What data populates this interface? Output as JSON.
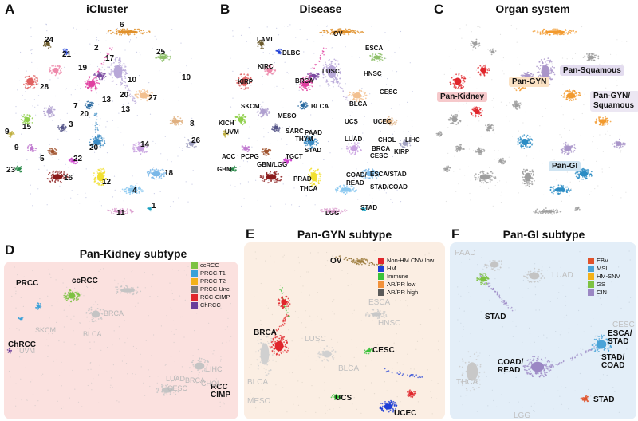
{
  "panels": {
    "A": {
      "letter": "A",
      "title": "iCluster",
      "labels": [
        "1",
        "2",
        "3",
        "4",
        "5",
        "6",
        "7",
        "8",
        "9",
        "9",
        "10",
        "10",
        "11",
        "12",
        "13",
        "13",
        "14",
        "15",
        "16",
        "17",
        "18",
        "19",
        "20",
        "20",
        "20",
        "21",
        "22",
        "23",
        "24",
        "25",
        "26",
        "27",
        "28"
      ]
    },
    "B": {
      "letter": "B",
      "title": "Disease",
      "labels": [
        "OV",
        "LAML",
        "DLBC",
        "ESCA",
        "KIRC",
        "LUSC",
        "HNSC",
        "BRCA",
        "KIRP",
        "BLCA",
        "CESC",
        "SKCM",
        "BLCA",
        "MESO",
        "UCS",
        "UCEC",
        "KICH",
        "UVM",
        "SARC",
        "THYM",
        "PAAD",
        "LUAD",
        "CHOL",
        "LIHC",
        "STAD",
        "BRCA",
        "CESC",
        "KIRP",
        "ACC",
        "PCPG",
        "TGCT",
        "GBM/LGG",
        "GBM",
        "PRAD",
        "THCA",
        "COAD/ READ",
        "ESCA/STAD",
        "STAD/COAD",
        "LGG",
        "STAD"
      ]
    },
    "C": {
      "letter": "C",
      "title": "Organ system",
      "tags": [
        "Pan-Kidney",
        "Pan-GYN",
        "Pan-Squamous",
        "Pan-GYN/ Squamous",
        "Pan-GI"
      ],
      "colors": {
        "kidney": "#e0252b",
        "gyn": "#f29a2e",
        "squamous": "#a995c9",
        "gi": "#2b8cc4",
        "other": "#9e9e9e"
      }
    },
    "D": {
      "letter": "D",
      "title": "Pan-Kidney subtype",
      "legend": [
        {
          "label": "ccRCC",
          "color": "#7dc242"
        },
        {
          "label": "PRCC T1",
          "color": "#3aa0d8"
        },
        {
          "label": "PRCC T2",
          "color": "#f2b11a"
        },
        {
          "label": "PRCC Unc.",
          "color": "#7a7a7a"
        },
        {
          "label": "RCC-CIMP",
          "color": "#e0252b"
        },
        {
          "label": "ChRCC",
          "color": "#6a3d9a"
        }
      ],
      "labels": [
        "ccRCC",
        "PRCC",
        "ChRCC",
        "RCC CIMP"
      ],
      "gray_labels": [
        "BRCA",
        "SKCM",
        "BLCA",
        "UVM",
        "LUAD",
        "LIHC",
        "CHOL",
        "BRCA",
        "CESC"
      ]
    },
    "E": {
      "letter": "E",
      "title": "Pan-GYN subtype",
      "legend": [
        {
          "label": "Non-HM CNV low",
          "color": "#e0252b"
        },
        {
          "label": "HM",
          "color": "#1f3fd6"
        },
        {
          "label": "Immune",
          "color": "#39c239"
        },
        {
          "label": "AR/PR low",
          "color": "#f2913a"
        },
        {
          "label": "AR/PR high",
          "color": "#5a5a5a"
        }
      ],
      "labels": [
        "OV",
        "BRCA",
        "CESC",
        "UCS",
        "UCEC"
      ],
      "gray_labels": [
        "ESCA",
        "HNSC",
        "LUSC",
        "BLCA",
        "BLCA",
        "MESO"
      ]
    },
    "F": {
      "letter": "F",
      "title": "Pan-GI subtype",
      "legend": [
        {
          "label": "EBV",
          "color": "#e0522b"
        },
        {
          "label": "MSI",
          "color": "#4aa3d8"
        },
        {
          "label": "HM-SNV",
          "color": "#f2b11a"
        },
        {
          "label": "GS",
          "color": "#7dc242"
        },
        {
          "label": "CIN",
          "color": "#9b87c4"
        }
      ],
      "labels": [
        "STAD",
        "COAD/ READ",
        "ESCA/ STAD",
        "STAD/ COAD",
        "STAD"
      ],
      "gray_labels": [
        "PAAD",
        "LUAD",
        "CESC",
        "THCA",
        "LGG"
      ]
    }
  }
}
